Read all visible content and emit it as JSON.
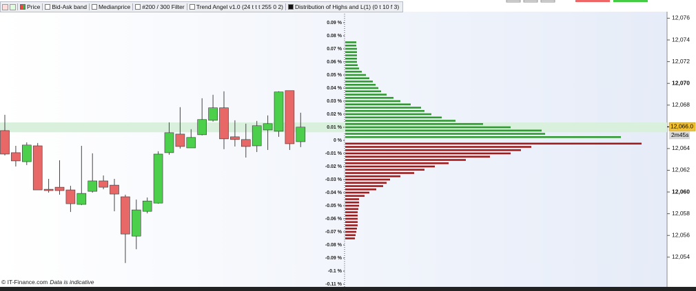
{
  "toolbar": [
    "Price",
    "Bid-Ask band",
    "Medianprice",
    "#200 / 300 Filter",
    "Trend Angel v1.0 (24 t t t 255 0 2)",
    "Distribution of Highs and L(1) (0 t 10 f 3)"
  ],
  "footer": "© IT-Finance.com",
  "footer_note": "Data is indicative",
  "current_price": {
    "value": 12066.0,
    "label": "12,066.0"
  },
  "timer": "2m45s",
  "chart_data": [
    {
      "type": "candlestick",
      "up_color": "#4cd04c",
      "down_color": "#e86868",
      "band": [
        12065.5,
        12066.4
      ],
      "band_color": "#d8f0dc",
      "ylim": [
        12051.2,
        12076.6
      ],
      "yticks": [
        {
          "value": 12054,
          "label": "12,054"
        },
        {
          "value": 12056,
          "label": "12,056"
        },
        {
          "value": 12058,
          "label": "12,058"
        },
        {
          "value": 12060,
          "label": "12,060"
        },
        {
          "value": 12062,
          "label": "12,062"
        },
        {
          "value": 12064,
          "label": "12,064"
        },
        {
          "value": 12066,
          "label": "12,066"
        },
        {
          "value": 12068,
          "label": "12,068"
        },
        {
          "value": 12070,
          "label": "12,070"
        },
        {
          "value": 12072,
          "label": "12,072"
        },
        {
          "value": 12074,
          "label": "12,074"
        },
        {
          "value": 12076,
          "label": "12,076"
        }
      ],
      "bold_ticks": [
        12060,
        12070
      ],
      "open": [
        12065.65,
        12063.62,
        12062.79,
        12064.25,
        12060.25,
        12060.44,
        12060.19,
        12058.86,
        12060.06,
        12061.02,
        12060.63,
        12059.56,
        12055.94,
        12058.22,
        12058.98,
        12063.62,
        12065.33,
        12064.06,
        12065.27,
        12066.6,
        12067.75,
        12065.08,
        12064.83,
        12064.25,
        12065.71,
        12065.59,
        12069.33,
        12064.63
      ],
      "high": [
        12067.11,
        12064.25,
        12064.57,
        12064.51,
        12061.21,
        12062.92,
        12060.57,
        12064.25,
        12063.56,
        12061.52,
        12061.21,
        12059.75,
        12059.3,
        12059.49,
        12063.75,
        12066.41,
        12067.81,
        12065.78,
        12068.63,
        12068.95,
        12069.27,
        12066.6,
        12066.29,
        12066.54,
        12067.05,
        12069.27,
        12069.33,
        12067.3
      ],
      "low": [
        12063.37,
        12062.35,
        12062.48,
        12060.19,
        12059.94,
        12059.75,
        12058.16,
        12058.79,
        12059.94,
        12060.25,
        12058.22,
        12053.46,
        12054.73,
        12058.03,
        12058.92,
        12063.43,
        12064.0,
        12064.06,
        12065.21,
        12066.48,
        12063.94,
        12064.19,
        12063.17,
        12063.68,
        12063.87,
        12065.08,
        12063.87,
        12064.13
      ],
      "close": [
        12063.49,
        12062.86,
        12064.32,
        12060.19,
        12060.13,
        12060.13,
        12058.92,
        12059.87,
        12061.02,
        12060.44,
        12059.81,
        12056.13,
        12058.35,
        12059.17,
        12063.49,
        12065.46,
        12064.19,
        12065.02,
        12066.67,
        12067.75,
        12064.89,
        12064.83,
        12064.19,
        12066.1,
        12066.29,
        12069.21,
        12064.44,
        12065.97
      ]
    },
    {
      "type": "distribution",
      "positive_color": "#2f9a2f",
      "negative_color": "#a01c1c",
      "ylim": [
        -0.1126,
        0.0984
      ],
      "xlim": [
        0,
        430
      ],
      "yticks": [
        {
          "value": 0.09,
          "label": "0.09 %"
        },
        {
          "value": 0.08,
          "label": "0.08 %"
        },
        {
          "value": 0.07,
          "label": "0.07 %"
        },
        {
          "value": 0.06,
          "label": "0.06 %"
        },
        {
          "value": 0.05,
          "label": "0.05 %"
        },
        {
          "value": 0.04,
          "label": "0.04 %"
        },
        {
          "value": 0.03,
          "label": "0.03 %"
        },
        {
          "value": 0.02,
          "label": "0.02 %"
        },
        {
          "value": 0.01,
          "label": "0.01 %"
        },
        {
          "value": 0,
          "label": "0 %"
        },
        {
          "value": -0.01,
          "label": "-0.01 %"
        },
        {
          "value": -0.02,
          "label": "-0.02 %"
        },
        {
          "value": -0.03,
          "label": "-0.03 %"
        },
        {
          "value": -0.04,
          "label": "-0.04 %"
        },
        {
          "value": -0.05,
          "label": "-0.05 %"
        },
        {
          "value": -0.06,
          "label": "-0.06 %"
        },
        {
          "value": -0.07,
          "label": "-0.07 %"
        },
        {
          "value": -0.08,
          "label": "-0.08 %"
        },
        {
          "value": -0.09,
          "label": "-0.09 %"
        },
        {
          "value": -0.1,
          "label": "-0.1 %"
        },
        {
          "value": -0.11,
          "label": "-0.11 %"
        }
      ],
      "y": [
        0.075,
        0.0725,
        0.07,
        0.0675,
        0.065,
        0.0625,
        0.06,
        0.0575,
        0.055,
        0.0525,
        0.05,
        0.0475,
        0.045,
        0.0425,
        0.04,
        0.0375,
        0.035,
        0.0325,
        0.03,
        0.0275,
        0.025,
        0.0225,
        0.02,
        0.0175,
        0.015,
        0.0125,
        0.01,
        0.0075,
        0.005,
        0.0025,
        -0.0025,
        -0.005,
        -0.0075,
        -0.01,
        -0.0125,
        -0.015,
        -0.0175,
        -0.02,
        -0.0225,
        -0.025,
        -0.0275,
        -0.03,
        -0.0325,
        -0.035,
        -0.0375,
        -0.04,
        -0.0425,
        -0.045,
        -0.0475,
        -0.05,
        -0.0525,
        -0.055,
        -0.0575,
        -0.06,
        -0.0625,
        -0.065,
        -0.0675,
        -0.07,
        -0.0725,
        -0.075
      ],
      "values": [
        16,
        16,
        17,
        17,
        17,
        17,
        17,
        18,
        20,
        24,
        30,
        35,
        40,
        44,
        48,
        52,
        60,
        70,
        80,
        95,
        110,
        115,
        125,
        140,
        160,
        200,
        240,
        285,
        290,
        400,
        430,
        270,
        255,
        240,
        210,
        175,
        150,
        130,
        115,
        100,
        80,
        65,
        60,
        55,
        45,
        35,
        28,
        20,
        20,
        20,
        19,
        18,
        18,
        18,
        18,
        18,
        17,
        16,
        15,
        14
      ]
    }
  ]
}
